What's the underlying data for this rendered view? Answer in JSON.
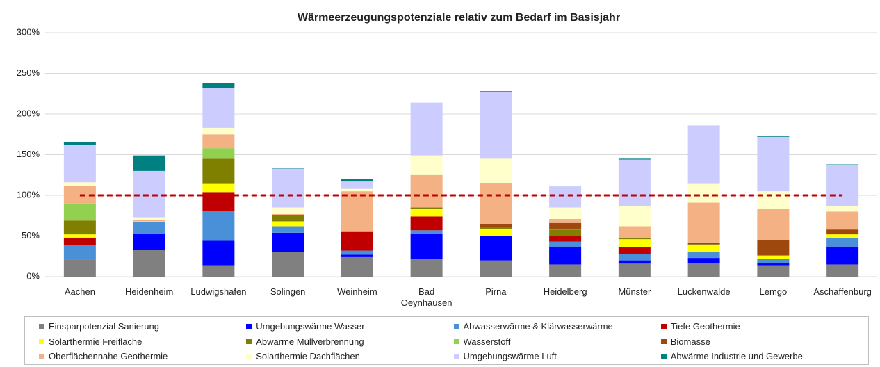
{
  "chart_data": {
    "type": "stacked_bar",
    "title": "Wärmeerzeugungspotenziale relativ zum Bedarf im Basisjahr",
    "categories": [
      "Aachen",
      "Heidenheim",
      "Ludwigshafen",
      "Solingen",
      "Weinheim",
      "Bad Oeynhausen",
      "Pirna",
      "Heidelberg",
      "Münster",
      "Luckenwalde",
      "Lemgo",
      "Aschaffenburg"
    ],
    "series": [
      {
        "name": "Einsparpotenzial Sanierung",
        "color": "#808080",
        "values": [
          21,
          33,
          14,
          30,
          24,
          22,
          20,
          15,
          16,
          17,
          14,
          15
        ]
      },
      {
        "name": "Umgebungswärme Wasser",
        "color": "#0000ff",
        "values": [
          0,
          20,
          30,
          24,
          3,
          31,
          30,
          22,
          4,
          6,
          3,
          22
        ]
      },
      {
        "name": "Abwasserwärme & Klärwasserwärme",
        "color": "#4a90d9",
        "values": [
          18,
          14,
          37,
          8,
          5,
          4,
          0,
          6,
          8,
          7,
          5,
          10
        ]
      },
      {
        "name": "Tiefe Geothermie",
        "color": "#c00000",
        "values": [
          9,
          0,
          23,
          0,
          23,
          17,
          0,
          7,
          8,
          0,
          0,
          0
        ]
      },
      {
        "name": "Solarthermie Freifläche",
        "color": "#ffff00",
        "values": [
          4,
          1,
          10,
          6,
          0,
          9,
          9,
          0,
          10,
          9,
          4,
          5
        ]
      },
      {
        "name": "Abwärme Müllverbrennung",
        "color": "#808000",
        "values": [
          17,
          0,
          31,
          8,
          0,
          2,
          2,
          8,
          1,
          1,
          0,
          0
        ]
      },
      {
        "name": "Wasserstoff",
        "color": "#92d050",
        "values": [
          21,
          0,
          13,
          0,
          0,
          0,
          0,
          1,
          0,
          0,
          0,
          0
        ]
      },
      {
        "name": "Biomasse",
        "color": "#9e480e",
        "values": [
          0,
          0,
          0,
          0,
          0,
          0,
          4,
          7,
          0,
          2,
          19,
          6
        ]
      },
      {
        "name": "Oberflächennahe Geothermie",
        "color": "#f4b183",
        "values": [
          22,
          2,
          17,
          1,
          50,
          40,
          50,
          5,
          15,
          49,
          38,
          22
        ]
      },
      {
        "name": "Solarthermie Dachflächen",
        "color": "#ffffcc",
        "values": [
          4,
          3,
          8,
          8,
          3,
          24,
          30,
          14,
          25,
          23,
          22,
          7
        ]
      },
      {
        "name": "Umgebungswärme Luft",
        "color": "#ccccff",
        "values": [
          46,
          57,
          49,
          48,
          9,
          65,
          82,
          26,
          57,
          72,
          67,
          50
        ]
      },
      {
        "name": "Abwärme Industrie und Gewerbe",
        "color": "#008080",
        "values": [
          3,
          19,
          6,
          1,
          3,
          0,
          1,
          0,
          1,
          0,
          1,
          1
        ]
      }
    ],
    "reference_line": {
      "value": 100,
      "color": "#c00000"
    },
    "ylim": [
      0,
      300
    ],
    "yticks": [
      {
        "value": 0,
        "label": "0%"
      },
      {
        "value": 50,
        "label": "50%"
      },
      {
        "value": 100,
        "label": "100%"
      },
      {
        "value": 150,
        "label": "150%"
      },
      {
        "value": 200,
        "label": "200%"
      },
      {
        "value": 250,
        "label": "250%"
      },
      {
        "value": 300,
        "label": "300%"
      }
    ],
    "grid": true
  }
}
